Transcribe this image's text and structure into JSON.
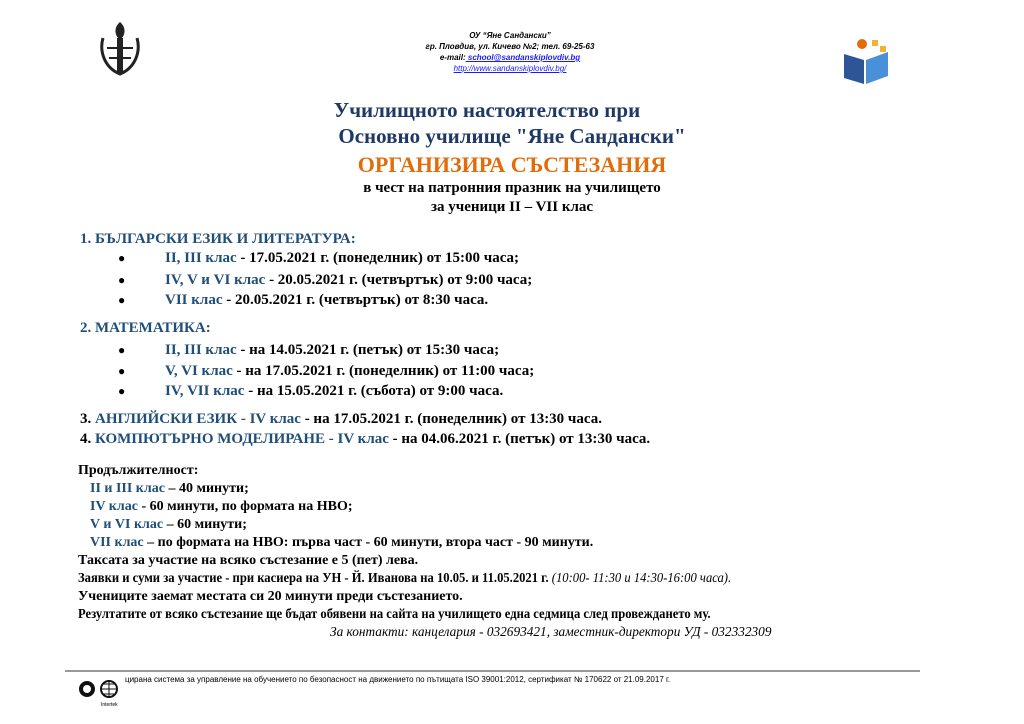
{
  "header": {
    "school": "ОУ “Яне Сандански”",
    "address": "гр. Пловдив, ул. Кичево №2; тел. 69-25-63",
    "email_label": "e-mail:",
    "email": " school@sandanskiplovdiv.bg",
    "website": "http://www.sandanskiplovdiv.bg/"
  },
  "title": {
    "line1": "Училищното настоятелство при",
    "line2": "Основно училище \"Яне Сандански\"",
    "line3": "ОРГАНИЗИРА СЪСТЕЗАНИЯ",
    "line4": "в чест на патронния празник на училището",
    "line5": "за ученици II – VII клас"
  },
  "sections": [
    {
      "heading": "1.  БЪЛГАРСКИ ЕЗИК И ЛИТЕРАТУРА:",
      "items": [
        {
          "cls": "II, III клас",
          "rest": " - 17.05.2021 г. (понеделник) от 15:00 часа;"
        },
        {
          "cls": "IV, V и VI клас",
          "rest": " - 20.05.2021 г. (четвъртък) от 9:00 часа;"
        },
        {
          "cls": "VII клас",
          "rest": " - 20.05.2021 г. (четвъртък) от 8:30 часа."
        }
      ]
    },
    {
      "heading": "2.  МАТЕМАТИКА:",
      "items": [
        {
          "cls": "II, III клас",
          "rest": " - на 14.05.2021 г. (петък) от 15:30 часа;"
        },
        {
          "cls": "V, VI клас",
          "rest": " - на 17.05.2021 г. (понеделник) от 11:00 часа;"
        },
        {
          "cls": "IV, VII клас",
          "rest": " - на 15.05.2021 г. (събота) от 9:00 часа."
        }
      ]
    }
  ],
  "extra": [
    {
      "num": "3.  ",
      "subject": "АНГЛИЙСКИ ЕЗИК - IV клас",
      "rest": " - на 17.05.2021 г. (понеделник)  от 13:30 часа."
    },
    {
      "num": "4.  ",
      "subject": "КОМПЮТЪРНО МОДЕЛИРАНЕ - IV клас",
      "rest": " - на 04.06.2021 г. (петък)  от 13:30 часа."
    }
  ],
  "duration": {
    "label": "Продължителност:",
    "items": [
      {
        "cls": "II и III клас",
        "rest": " – 40 минути;"
      },
      {
        "cls": "IV клас",
        "rest": " - 60 минути, по формата на НВО;"
      },
      {
        "cls": "V и VI клас",
        "rest": " – 60 минути;"
      },
      {
        "cls": "VII клас",
        "rest": " – по формата на НВО: първа част - 60 минути, втора част - 90 минути."
      }
    ]
  },
  "notes": {
    "fee": "Таксата за участие на всяко състезание е 5 (пет) лева.",
    "apply": "Заявки и суми за участие - при касиера на УН - Й. Иванова на 10.05. и 11.05.2021 г. ",
    "apply_hours": "(10:00- 11:30 и 14:30-16:00 часа).",
    "seats": "Учениците заемат местата си 20 минути преди състезанието.",
    "results": "Резултатите от всяко състезание ще бъдат обявени на сайта на училището една седмица след провеждането му.",
    "contacts": "За контакти: канцелария - 032693421, заместник-директори УД - 032332309"
  },
  "footer": {
    "text": "цирана система за управление на обучението по безопасност на движението по пътищата ISO 39001:2012, сертификат № 170622 от 21.09.2017 г.",
    "logo_text": "Intertek"
  }
}
